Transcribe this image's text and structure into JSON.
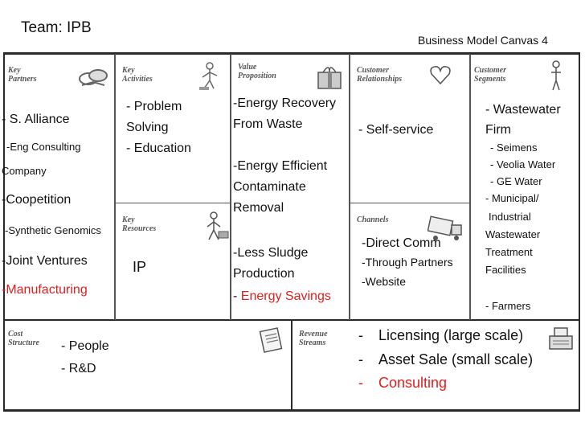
{
  "header": {
    "team": "Team: IPB",
    "canvas_title": "Business Model Canvas 4"
  },
  "blocks": {
    "key_partners": {
      "label_1": "Key",
      "label_2": "Partners",
      "icon": "handshake-icon"
    },
    "key_activities": {
      "label_1": "Key",
      "label_2": "Activities",
      "icon": "worker-icon"
    },
    "value_proposition": {
      "label_1": "Value",
      "label_2": "Proposition",
      "icon": "gift-icon"
    },
    "customer_relationships": {
      "label_1": "Customer",
      "label_2": "Relationships",
      "icon": "heart-icon"
    },
    "customer_segments": {
      "label_1": "Customer",
      "label_2": "Segments",
      "icon": "person-icon"
    },
    "key_resources": {
      "label_1": "Key",
      "label_2": "Resources",
      "icon": "worker-cart-icon"
    },
    "channels": {
      "label_1": "Channels",
      "icon": "truck-icon"
    },
    "cost_structure": {
      "label_1": "Cost",
      "label_2": "Structure",
      "icon": "receipt-icon"
    },
    "revenue_streams": {
      "label_1": "Revenue",
      "label_2": "Streams",
      "icon": "cash-register-icon"
    }
  },
  "key_partners": {
    "item_1": "- S. Alliance",
    "item_1_sub_1": "-Eng Consulting",
    "item_1_sub_2": "Company",
    "item_2": "-Coopetition",
    "item_2_sub": "-Synthetic Genomics",
    "item_3": "-Joint Ventures",
    "item_4": "-Manufacturing"
  },
  "key_activities": {
    "line_1": "- Problem",
    "line_2": "Solving",
    "line_3": "- Education"
  },
  "key_resources": {
    "item_1": "IP"
  },
  "value_proposition": {
    "line_1": "-Energy Recovery",
    "line_2": "From Waste",
    "line_3": "-Energy Efficient",
    "line_4": "Contaminate",
    "line_5": "Removal",
    "line_6": "-Less Sludge",
    "line_7": "Production",
    "line_8_prefix": "- ",
    "line_8_red": "Energy Savings"
  },
  "customer_relationships": {
    "item_1": "- Self-service"
  },
  "channels": {
    "item_1": "-Direct Comm",
    "item_2": "-Through Partners",
    "item_3": "-Website"
  },
  "customer_segments": {
    "line_1": "- Wastewater",
    "line_2": "Firm",
    "line_3": "- Seimens",
    "line_4": "- Veolia Water",
    "line_5": "- GE Water",
    "line_6": "- Municipal/",
    "line_7": "Industrial",
    "line_8": "Wastewater",
    "line_9": "Treatment",
    "line_10": "Facilities",
    "line_11": "- Farmers"
  },
  "cost_structure": {
    "item_1": "- People",
    "item_2": "- R&D"
  },
  "revenue_streams": {
    "dash_1": "-",
    "item_1": "Licensing (large scale)",
    "dash_2": "-",
    "item_2": "Asset Sale (small scale)",
    "dash_3": "-",
    "item_3": "Consulting"
  },
  "colors": {
    "highlight": "#e02020",
    "border": "#2a2a2a"
  }
}
